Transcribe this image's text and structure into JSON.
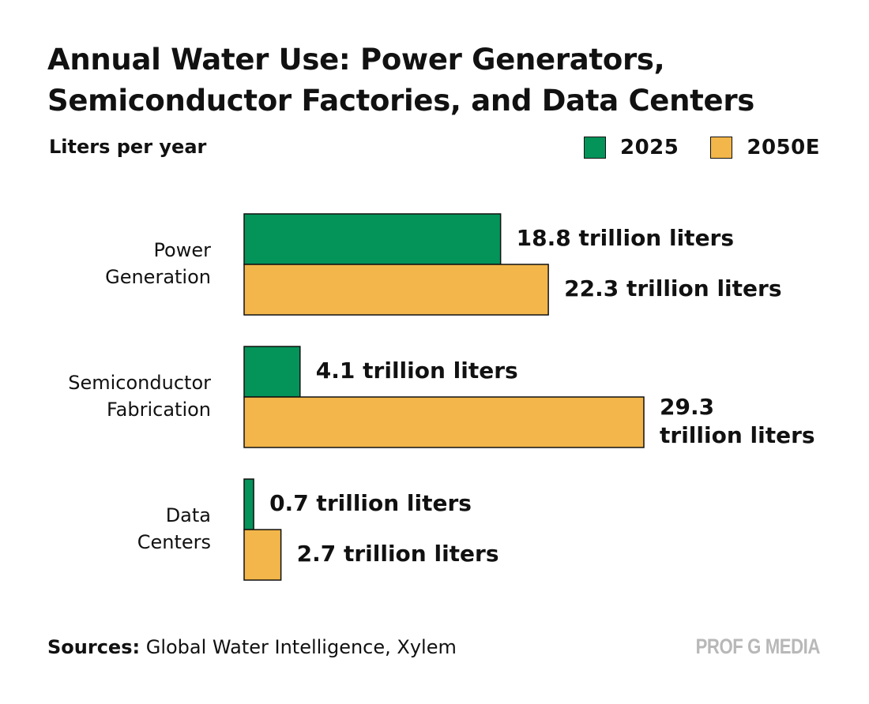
{
  "title_lines": [
    "Annual Water Use: Power Generators,",
    "Semiconductor Factories, and Data Centers"
  ],
  "subtitle": "Liters per year",
  "legend": [
    {
      "label": "2025",
      "color": "#049359"
    },
    {
      "label": "2050E",
      "color": "#F2B64A"
    }
  ],
  "chart_data": {
    "type": "bar",
    "orientation": "horizontal",
    "title": "Annual Water Use: Power Generators, Semiconductor Factories, and Data Centers",
    "ylabel": "Liters per year",
    "categories": [
      [
        "Power",
        "Generation"
      ],
      [
        "Semiconductor",
        "Fabrication"
      ],
      [
        "Data",
        "Centers"
      ]
    ],
    "series": [
      {
        "name": "2025",
        "color": "#049359",
        "values": [
          18.8,
          4.1,
          0.7
        ],
        "labels": [
          [
            "18.8 trillion liters"
          ],
          [
            "4.1 trillion liters"
          ],
          [
            "0.7 trillion liters"
          ]
        ]
      },
      {
        "name": "2050E",
        "color": "#F2B64A",
        "values": [
          22.3,
          29.3,
          2.7
        ],
        "labels": [
          [
            "22.3 trillion liters"
          ],
          [
            "29.3",
            "trillion liters"
          ],
          [
            "2.7 trillion liters"
          ]
        ]
      }
    ],
    "xlim": [
      0,
      29.3
    ],
    "unit": "trillion liters",
    "grid": false,
    "legend": "top-right"
  },
  "footer": {
    "label": "Sources:",
    "text": "Global Water Intelligence, Xylem"
  },
  "brand": "PROF G MEDIA"
}
